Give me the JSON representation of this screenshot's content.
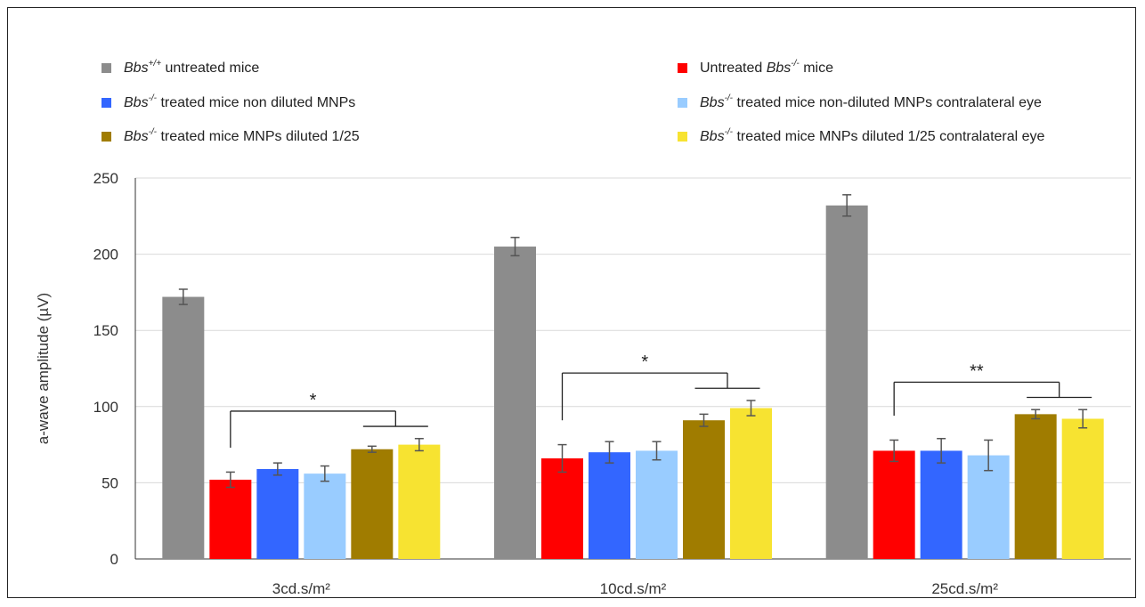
{
  "chart_data": {
    "type": "bar",
    "title": "",
    "xlabel": "",
    "ylabel": "a-wave amplitude (µV)",
    "ylim": [
      0,
      250
    ],
    "yticks": [
      0,
      50,
      100,
      150,
      200,
      250
    ],
    "grid": true,
    "legend_position": "top",
    "categories": [
      "3cd.s/m²",
      "10cd.s/m²",
      "25cd.s/m²"
    ],
    "series": [
      {
        "color": "#8c8c8c",
        "values": [
          172,
          205,
          232
        ],
        "errors": [
          5,
          6,
          7
        ]
      },
      {
        "color": "#ff0000",
        "values": [
          52,
          66,
          71
        ],
        "errors": [
          5,
          9,
          7
        ]
      },
      {
        "color": "#3366ff",
        "values": [
          59,
          70,
          71
        ],
        "errors": [
          4,
          7,
          8
        ]
      },
      {
        "color": "#99ccff",
        "values": [
          56,
          71,
          68
        ],
        "errors": [
          5,
          6,
          10
        ]
      },
      {
        "color": "#a07c00",
        "values": [
          72,
          91,
          95
        ],
        "errors": [
          2,
          4,
          3
        ]
      },
      {
        "color": "#f7e331",
        "values": [
          75,
          99,
          92
        ],
        "errors": [
          4,
          5,
          6
        ]
      }
    ],
    "significance": [
      {
        "category": "3cd.s/m²",
        "label": "*"
      },
      {
        "category": "10cd.s/m²",
        "label": "*"
      },
      {
        "category": "25cd.s/m²",
        "label": "**"
      }
    ]
  },
  "legend": {
    "items": [
      {
        "color": "#8c8c8c",
        "pre": "",
        "gene": "Bbs",
        "sup": "+/+",
        "post": " untreated mice"
      },
      {
        "color": "#ff0000",
        "pre": "Untreated ",
        "gene": "Bbs",
        "sup": "-/-",
        "post": " mice"
      },
      {
        "color": "#3366ff",
        "pre": "",
        "gene": "Bbs",
        "sup": "-/-",
        "post": " treated mice non diluted MNPs"
      },
      {
        "color": "#99ccff",
        "pre": "",
        "gene": "Bbs",
        "sup": "-/-",
        "post": " treated mice non-diluted MNPs contralateral eye"
      },
      {
        "color": "#a07c00",
        "pre": "",
        "gene": "Bbs",
        "sup": "-/-",
        "post": " treated mice MNPs diluted 1/25"
      },
      {
        "color": "#f7e331",
        "pre": "",
        "gene": "Bbs",
        "sup": "-/-",
        "post": " treated mice MNPs diluted 1/25 contralateral eye"
      }
    ]
  }
}
